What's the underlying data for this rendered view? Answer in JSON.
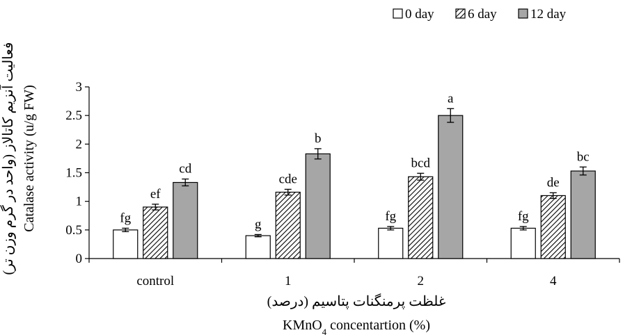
{
  "chart_data": {
    "type": "bar",
    "categories": [
      "control",
      "1",
      "2",
      "4"
    ],
    "series": [
      {
        "name": "0 day",
        "values": [
          0.5,
          0.4,
          0.53,
          0.53
        ],
        "errors": [
          0.03,
          0.02,
          0.03,
          0.03
        ],
        "letters": [
          "fg",
          "g",
          "fg",
          "fg"
        ],
        "fill": "solid",
        "color": "#ffffff"
      },
      {
        "name": "6 day",
        "values": [
          0.9,
          1.16,
          1.43,
          1.1
        ],
        "errors": [
          0.05,
          0.05,
          0.06,
          0.05
        ],
        "letters": [
          "ef",
          "cde",
          "bcd",
          "de"
        ],
        "fill": "hatched",
        "color": "#ffffff"
      },
      {
        "name": "12 day",
        "values": [
          1.33,
          1.83,
          2.5,
          1.53
        ],
        "errors": [
          0.06,
          0.09,
          0.12,
          0.07
        ],
        "letters": [
          "cd",
          "b",
          "a",
          "bc"
        ],
        "fill": "solid",
        "color": "#a6a6a6"
      }
    ],
    "ylim": [
      0,
      3
    ],
    "yticks": [
      "0",
      "0.5",
      "1",
      "1.5",
      "2",
      "2.5",
      "3"
    ],
    "ylabel": "Catalase activity (u/g FW)",
    "ylabel_fa": "فعالیت آنزیم کاتالاز (واحد در گرم وزن تر)",
    "xlabel_fa": "غلظت پرمنگنات پتاسیم (درصد)",
    "xlabel": {
      "pre": "KMnO",
      "sub": "4",
      "post": " concentartion (%)"
    },
    "legend": {
      "placement": "top-right"
    },
    "grid": false
  }
}
